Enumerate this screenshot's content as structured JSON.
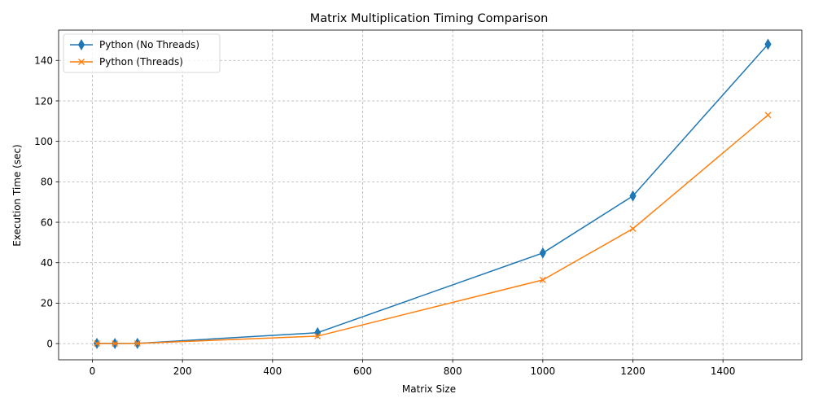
{
  "chart_data": {
    "type": "line",
    "title": "Matrix Multiplication Timing Comparison",
    "xlabel": "Matrix Size",
    "ylabel": "Execution Time (sec)",
    "xlim": [
      -75,
      1575
    ],
    "ylim": [
      -8,
      155
    ],
    "xticks": [
      0,
      200,
      400,
      600,
      800,
      1000,
      1200,
      1400
    ],
    "yticks": [
      0,
      20,
      40,
      60,
      80,
      100,
      120,
      140
    ],
    "grid": true,
    "legend_position": "upper-left",
    "x": [
      10,
      50,
      100,
      500,
      1000,
      1200,
      1500
    ],
    "series": [
      {
        "name": "Python (No Threads)",
        "marker": "thin-diamond",
        "color": "#1f77b4",
        "values": [
          0.1,
          0.05,
          0.1,
          5.4,
          44.8,
          73.0,
          148.0
        ]
      },
      {
        "name": "Python (Threads)",
        "marker": "x",
        "color": "#ff7f0e",
        "values": [
          0.05,
          0.03,
          0.1,
          3.7,
          31.5,
          56.8,
          113.0
        ]
      }
    ]
  }
}
